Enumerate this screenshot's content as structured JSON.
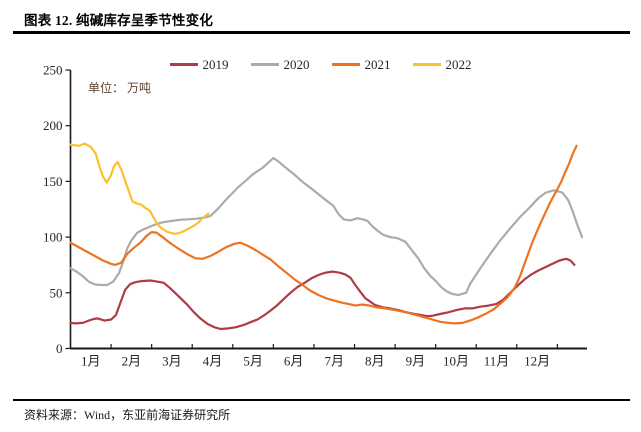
{
  "header": {
    "title": "图表 12. 纯碱库存呈季节性变化"
  },
  "footer": {
    "source": "资料来源：Wind，东亚前海证券研究所"
  },
  "styles": {
    "axis_color": "#1a1a1a",
    "tick_label_color": "#262626",
    "legend_text_color": "#262626",
    "unit_label_color": "#5d4433",
    "rule_color": "#000000",
    "background": "#ffffff"
  },
  "chart_data": {
    "type": "line",
    "title": "图表 12. 纯碱库存呈季节性变化",
    "unit_label": "单位： 万吨",
    "legend_position": "top",
    "grid": false,
    "categories": [
      "1月",
      "2月",
      "3月",
      "4月",
      "5月",
      "6月",
      "7月",
      "8月",
      "9月",
      "10月",
      "11月",
      "12月"
    ],
    "yticks": [
      0,
      50,
      100,
      150,
      200,
      250
    ],
    "ylim": [
      0,
      250
    ],
    "x_axis_months": 12.73,
    "series": [
      {
        "name": "2019",
        "color": "#B13B44",
        "points": [
          [
            0,
            23
          ],
          [
            0.12,
            22.5
          ],
          [
            0.3,
            23
          ],
          [
            0.45,
            25
          ],
          [
            0.57,
            26.5
          ],
          [
            0.67,
            27
          ],
          [
            0.84,
            25
          ],
          [
            1.0,
            26
          ],
          [
            1.12,
            30
          ],
          [
            1.23,
            41
          ],
          [
            1.35,
            53
          ],
          [
            1.48,
            58
          ],
          [
            1.6,
            59.5
          ],
          [
            1.75,
            60.5
          ],
          [
            1.97,
            61
          ],
          [
            2.15,
            60
          ],
          [
            2.3,
            59
          ],
          [
            2.46,
            54
          ],
          [
            2.66,
            47
          ],
          [
            2.86,
            40
          ],
          [
            3.03,
            33
          ],
          [
            3.2,
            27
          ],
          [
            3.38,
            22
          ],
          [
            3.55,
            19
          ],
          [
            3.7,
            17.5
          ],
          [
            3.89,
            18
          ],
          [
            4.07,
            19
          ],
          [
            4.26,
            21
          ],
          [
            4.43,
            23.5
          ],
          [
            4.61,
            26
          ],
          [
            4.78,
            30
          ],
          [
            4.93,
            34
          ],
          [
            5.1,
            39
          ],
          [
            5.27,
            45
          ],
          [
            5.42,
            50
          ],
          [
            5.59,
            55
          ],
          [
            5.77,
            59
          ],
          [
            5.94,
            63
          ],
          [
            6.11,
            66
          ],
          [
            6.28,
            68
          ],
          [
            6.46,
            69
          ],
          [
            6.63,
            68
          ],
          [
            6.77,
            66.5
          ],
          [
            6.9,
            63.5
          ],
          [
            7.02,
            57
          ],
          [
            7.14,
            51
          ],
          [
            7.27,
            45
          ],
          [
            7.39,
            42
          ],
          [
            7.51,
            39
          ],
          [
            7.69,
            37
          ],
          [
            7.88,
            36
          ],
          [
            8.08,
            34.5
          ],
          [
            8.28,
            32.5
          ],
          [
            8.48,
            31
          ],
          [
            8.65,
            30
          ],
          [
            8.8,
            29
          ],
          [
            8.94,
            29.5
          ],
          [
            9.11,
            31
          ],
          [
            9.31,
            32.5
          ],
          [
            9.51,
            34.5
          ],
          [
            9.71,
            36
          ],
          [
            9.9,
            36
          ],
          [
            10.1,
            37.5
          ],
          [
            10.3,
            38.5
          ],
          [
            10.5,
            40
          ],
          [
            10.67,
            44
          ],
          [
            10.84,
            50
          ],
          [
            11.01,
            56
          ],
          [
            11.19,
            62
          ],
          [
            11.36,
            66.5
          ],
          [
            11.53,
            70
          ],
          [
            11.7,
            73
          ],
          [
            11.88,
            76
          ],
          [
            12.05,
            79
          ],
          [
            12.22,
            80.5
          ],
          [
            12.32,
            79
          ],
          [
            12.42,
            75
          ]
        ]
      },
      {
        "name": "2020",
        "color": "#ABABAB",
        "points": [
          [
            0,
            72
          ],
          [
            0.15,
            69
          ],
          [
            0.3,
            65
          ],
          [
            0.45,
            60
          ],
          [
            0.6,
            57.5
          ],
          [
            0.75,
            57
          ],
          [
            0.9,
            57
          ],
          [
            1.05,
            60
          ],
          [
            1.2,
            68
          ],
          [
            1.3,
            78
          ],
          [
            1.4,
            90
          ],
          [
            1.5,
            97
          ],
          [
            1.65,
            104
          ],
          [
            1.8,
            107
          ],
          [
            2.0,
            110
          ],
          [
            2.14,
            112
          ],
          [
            2.3,
            113.5
          ],
          [
            2.5,
            114.5
          ],
          [
            2.7,
            115.5
          ],
          [
            2.9,
            116
          ],
          [
            3.1,
            116.5
          ],
          [
            3.3,
            117.5
          ],
          [
            3.45,
            119
          ],
          [
            3.62,
            125
          ],
          [
            3.87,
            135
          ],
          [
            4.11,
            144
          ],
          [
            4.36,
            152
          ],
          [
            4.48,
            156
          ],
          [
            4.6,
            159
          ],
          [
            4.73,
            162
          ],
          [
            4.85,
            166
          ],
          [
            5.0,
            171
          ],
          [
            5.12,
            168
          ],
          [
            5.25,
            164
          ],
          [
            5.49,
            157
          ],
          [
            5.74,
            149
          ],
          [
            5.99,
            142
          ],
          [
            6.23,
            135
          ],
          [
            6.48,
            128
          ],
          [
            6.6,
            121
          ],
          [
            6.73,
            116
          ],
          [
            6.9,
            115
          ],
          [
            7.07,
            117
          ],
          [
            7.2,
            116
          ],
          [
            7.32,
            114.5
          ],
          [
            7.46,
            109
          ],
          [
            7.56,
            106
          ],
          [
            7.71,
            102
          ],
          [
            7.88,
            100
          ],
          [
            8.06,
            99
          ],
          [
            8.25,
            96
          ],
          [
            8.42,
            88
          ],
          [
            8.57,
            81
          ],
          [
            8.72,
            72
          ],
          [
            8.87,
            65
          ],
          [
            9.02,
            60
          ],
          [
            9.14,
            55
          ],
          [
            9.29,
            51
          ],
          [
            9.41,
            49
          ],
          [
            9.56,
            48
          ],
          [
            9.75,
            50
          ],
          [
            9.85,
            58
          ],
          [
            10.1,
            72
          ],
          [
            10.35,
            85
          ],
          [
            10.59,
            97
          ],
          [
            10.84,
            108
          ],
          [
            11.08,
            118
          ],
          [
            11.33,
            127
          ],
          [
            11.53,
            135
          ],
          [
            11.72,
            140
          ],
          [
            11.92,
            142
          ],
          [
            12.12,
            140
          ],
          [
            12.27,
            133
          ],
          [
            12.37,
            124
          ],
          [
            12.49,
            111
          ],
          [
            12.61,
            100
          ]
        ]
      },
      {
        "name": "2021",
        "color": "#ED7320",
        "points": [
          [
            0,
            95
          ],
          [
            0.2,
            91
          ],
          [
            0.4,
            87
          ],
          [
            0.6,
            83
          ],
          [
            0.8,
            79
          ],
          [
            1.0,
            76
          ],
          [
            1.1,
            75
          ],
          [
            1.25,
            77
          ],
          [
            1.4,
            85
          ],
          [
            1.55,
            90
          ],
          [
            1.72,
            95
          ],
          [
            1.87,
            101
          ],
          [
            2.0,
            104.5
          ],
          [
            2.12,
            104
          ],
          [
            2.27,
            100
          ],
          [
            2.41,
            96
          ],
          [
            2.56,
            92
          ],
          [
            2.73,
            88
          ],
          [
            2.91,
            84
          ],
          [
            3.08,
            81
          ],
          [
            3.25,
            80.5
          ],
          [
            3.45,
            83
          ],
          [
            3.65,
            87
          ],
          [
            3.84,
            91
          ],
          [
            4.04,
            94
          ],
          [
            4.19,
            95
          ],
          [
            4.38,
            92
          ],
          [
            4.58,
            88
          ],
          [
            4.75,
            84
          ],
          [
            4.93,
            80
          ],
          [
            5.12,
            74
          ],
          [
            5.32,
            68
          ],
          [
            5.52,
            62
          ],
          [
            5.72,
            57
          ],
          [
            5.91,
            52
          ],
          [
            6.11,
            48
          ],
          [
            6.31,
            45
          ],
          [
            6.5,
            43
          ],
          [
            6.7,
            41
          ],
          [
            6.85,
            40
          ],
          [
            7.02,
            38.5
          ],
          [
            7.19,
            39.5
          ],
          [
            7.37,
            38.5
          ],
          [
            7.54,
            37
          ],
          [
            7.74,
            36
          ],
          [
            7.93,
            35
          ],
          [
            8.13,
            33.5
          ],
          [
            8.33,
            32
          ],
          [
            8.52,
            30
          ],
          [
            8.72,
            28
          ],
          [
            8.92,
            26
          ],
          [
            9.11,
            24
          ],
          [
            9.31,
            23
          ],
          [
            9.48,
            22.5
          ],
          [
            9.66,
            23
          ],
          [
            9.85,
            25
          ],
          [
            10.05,
            28
          ],
          [
            10.25,
            31.5
          ],
          [
            10.44,
            35.5
          ],
          [
            10.59,
            40
          ],
          [
            10.77,
            46
          ],
          [
            10.94,
            54
          ],
          [
            11.08,
            65
          ],
          [
            11.23,
            80
          ],
          [
            11.38,
            95
          ],
          [
            11.53,
            108
          ],
          [
            11.68,
            120
          ],
          [
            11.82,
            131
          ],
          [
            11.97,
            141
          ],
          [
            12.1,
            150
          ],
          [
            12.19,
            158
          ],
          [
            12.29,
            166
          ],
          [
            12.37,
            174
          ],
          [
            12.47,
            182
          ]
        ]
      },
      {
        "name": "2022",
        "color": "#FBC02D",
        "points": [
          [
            0,
            183
          ],
          [
            0.1,
            182.5
          ],
          [
            0.22,
            182
          ],
          [
            0.35,
            184
          ],
          [
            0.5,
            181
          ],
          [
            0.62,
            175
          ],
          [
            0.71,
            164
          ],
          [
            0.79,
            155
          ],
          [
            0.89,
            149
          ],
          [
            0.99,
            155
          ],
          [
            1.08,
            164
          ],
          [
            1.16,
            167.5
          ],
          [
            1.26,
            160
          ],
          [
            1.35,
            150
          ],
          [
            1.45,
            140
          ],
          [
            1.53,
            132
          ],
          [
            1.65,
            130
          ],
          [
            1.75,
            129
          ],
          [
            1.85,
            126
          ],
          [
            1.95,
            124
          ],
          [
            2.04,
            118
          ],
          [
            2.14,
            112
          ],
          [
            2.24,
            108
          ],
          [
            2.37,
            105
          ],
          [
            2.49,
            103.5
          ],
          [
            2.59,
            103
          ],
          [
            2.71,
            104
          ],
          [
            2.83,
            106
          ],
          [
            2.96,
            108.5
          ],
          [
            3.08,
            111
          ],
          [
            3.18,
            114
          ],
          [
            3.25,
            117
          ],
          [
            3.33,
            119
          ],
          [
            3.4,
            121
          ]
        ]
      }
    ]
  }
}
